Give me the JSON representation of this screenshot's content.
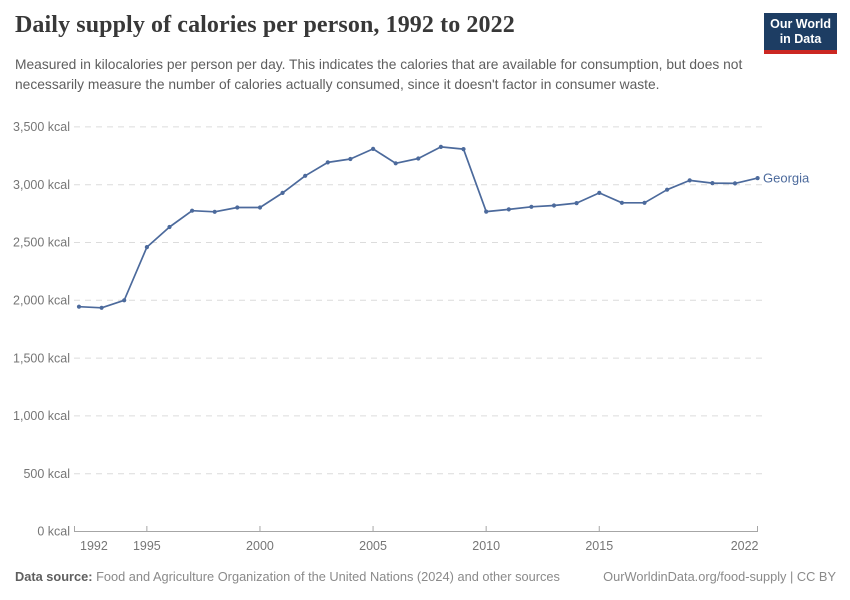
{
  "header": {
    "title": "Daily supply of calories per person, 1992 to 2022",
    "subtitle": "Measured in kilocalories per person per day. This indicates the calories that are available for consumption, but does not necessarily measure the number of calories actually consumed, since it doesn't factor in consumer waste."
  },
  "logo": {
    "line1": "Our World",
    "line2": "in Data",
    "bg_color": "#1d3d63",
    "accent_color": "#cb2722"
  },
  "chart_data": {
    "type": "line",
    "title": "Daily supply of calories per person, 1992 to 2022",
    "unit": "kcal",
    "x": [
      1992,
      1993,
      1994,
      1995,
      1996,
      1997,
      1998,
      1999,
      2000,
      2001,
      2002,
      2003,
      2004,
      2005,
      2006,
      2007,
      2008,
      2009,
      2010,
      2011,
      2012,
      2013,
      2014,
      2015,
      2016,
      2017,
      2018,
      2019,
      2020,
      2021,
      2022
    ],
    "series": [
      {
        "name": "Georgia",
        "color": "#4C6A9C",
        "values": [
          1945,
          1935,
          2000,
          2460,
          2634,
          2775,
          2766,
          2803,
          2803,
          2929,
          3077,
          3193,
          3222,
          3310,
          3185,
          3227,
          3327,
          3308,
          2767,
          2786,
          2809,
          2820,
          2841,
          2929,
          2843,
          2843,
          2957,
          3037,
          3014,
          3011,
          3057
        ]
      }
    ],
    "ylim": [
      0,
      3500
    ],
    "yticks": [
      {
        "value": 0,
        "label": "0 kcal"
      },
      {
        "value": 500,
        "label": "500 kcal"
      },
      {
        "value": 1000,
        "label": "1,000 kcal"
      },
      {
        "value": 1500,
        "label": "1,500 kcal"
      },
      {
        "value": 2000,
        "label": "2,000 kcal"
      },
      {
        "value": 2500,
        "label": "2,500 kcal"
      },
      {
        "value": 3000,
        "label": "3,000 kcal"
      },
      {
        "value": 3500,
        "label": "3,500 kcal"
      }
    ],
    "xticks": [
      {
        "value": 1992,
        "label": "1992"
      },
      {
        "value": 1995,
        "label": "1995"
      },
      {
        "value": 2000,
        "label": "2000"
      },
      {
        "value": 2005,
        "label": "2005"
      },
      {
        "value": 2010,
        "label": "2010"
      },
      {
        "value": 2015,
        "label": "2015"
      },
      {
        "value": 2022,
        "label": "2022"
      }
    ],
    "grid": "horizontal-dashed",
    "legend": "line-end-label"
  },
  "footer": {
    "source_label": "Data source:",
    "source_text": " Food and Agriculture Organization of the United Nations (2024) and other sources",
    "rights": "OurWorldinData.org/food-supply | CC BY"
  }
}
